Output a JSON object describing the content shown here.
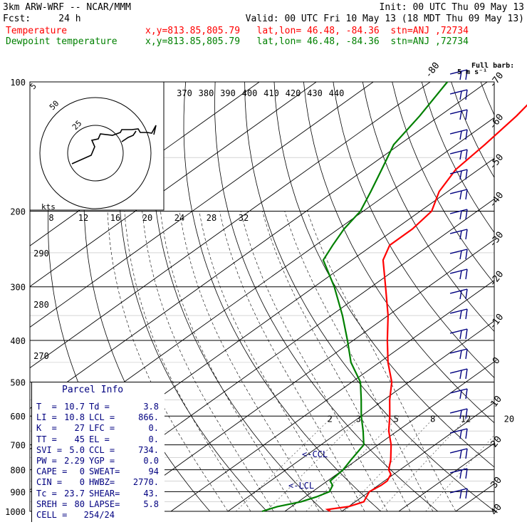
{
  "header": {
    "line1_left": "3km ARW-WRF -- NCAR/MMM",
    "line1_right": "Init: 00 UTC Thu 09 May 13",
    "line2_left": "Fcst:     24 h",
    "line2_right": "Valid: 00 UTC Fri 10 May 13 (18 MDT Thu 09 May 13)",
    "temp_label": "Temperature",
    "temp_loc": "x,y=813.85,805.79   lat,lon= 46.48, -84.36  stn=ANJ ,72734",
    "dew_label": "Dewpoint temperature",
    "dew_loc": "x,y=813.85,805.79   lat,lon= 46.48, -84.36  stn=ANJ ,72734",
    "colors": {
      "temperature": "#ff0000",
      "dewpoint": "#008000",
      "parcel": "#000080"
    }
  },
  "barb_legend": {
    "line1": "Full barb:",
    "line2": "5 m s⁻¹"
  },
  "hodograph": {
    "units": "kts",
    "ring_labels": [
      "25",
      "50",
      "5"
    ]
  },
  "parcel_info": {
    "title": "Parcel Info",
    "rows": [
      {
        "k1": "T  =",
        "v1": "10.7",
        "k2": "Td =",
        "v2": "3.8"
      },
      {
        "k1": "LI =",
        "v1": "10.8",
        "k2": "LCL =",
        "v2": "866."
      },
      {
        "k1": "K  =",
        "v1": "27",
        "k2": "LFC =",
        "v2": "0."
      },
      {
        "k1": "TT =",
        "v1": "45",
        "k2": "EL =",
        "v2": "0."
      },
      {
        "k1": "SVI =",
        "v1": "5.0",
        "k2": "CCL =",
        "v2": "734."
      },
      {
        "k1": "PW =",
        "v1": "2.29",
        "k2": "YGP =",
        "v2": "0.0"
      },
      {
        "k1": "CAPE =",
        "v1": "0",
        "k2": "SWEAT=",
        "v2": "94"
      },
      {
        "k1": "CIN =",
        "v1": "0",
        "k2": "HWBZ=",
        "v2": "2770."
      },
      {
        "k1": "Tc =",
        "v1": "23.7",
        "k2": "SHEAR=",
        "v2": "43."
      },
      {
        "k1": "SREH =",
        "v1": "80",
        "k2": "LAPSE=",
        "v2": "5.8"
      },
      {
        "k1": "CELL =",
        "v1": "254/24",
        "k2": "",
        "v2": ""
      }
    ]
  },
  "annotations": {
    "ccl": "<-CCL",
    "lcl": "<-LCL"
  },
  "chart_data": {
    "type": "line",
    "title": "",
    "pressure_levels": [
      100,
      200,
      300,
      400,
      500,
      600,
      700,
      800,
      900,
      1000
    ],
    "temp_ticks": [
      -80,
      -70,
      -60,
      -50,
      -40,
      -30,
      -20,
      -10,
      0,
      10,
      20,
      30,
      40
    ],
    "theta_labels": [
      {
        "value": "370"
      },
      {
        "value": "380"
      },
      {
        "value": "390"
      },
      {
        "value": "400"
      },
      {
        "value": "410"
      },
      {
        "value": "420"
      },
      {
        "value": "430"
      },
      {
        "value": "440"
      }
    ],
    "mixing_ratio_labels": [
      "2",
      "3",
      "5",
      "8",
      "12",
      "20"
    ],
    "theta_e_labels": [
      "290",
      "280",
      "270"
    ],
    "hodo_speed_labels": [
      "8",
      "12",
      "16",
      "20",
      "24",
      "28",
      "32"
    ],
    "series": [
      {
        "name": "Temperature",
        "color": "#ff0000",
        "points": [
          [
            1000,
            8.0
          ],
          [
            990,
            7.0
          ],
          [
            975,
            10.0
          ],
          [
            950,
            11.5
          ],
          [
            900,
            10.0
          ],
          [
            870,
            10.5
          ],
          [
            850,
            10.5
          ],
          [
            820,
            9.5
          ],
          [
            800,
            8.0
          ],
          [
            760,
            6.0
          ],
          [
            700,
            2.3
          ],
          [
            650,
            -1.5
          ],
          [
            600,
            -5.0
          ],
          [
            550,
            -9.0
          ],
          [
            500,
            -13.0
          ],
          [
            450,
            -18.5
          ],
          [
            400,
            -24.0
          ],
          [
            350,
            -30.0
          ],
          [
            300,
            -37.5
          ],
          [
            260,
            -44.5
          ],
          [
            240,
            -47.0
          ],
          [
            220,
            -47.0
          ],
          [
            200,
            -48.0
          ],
          [
            180,
            -51.5
          ],
          [
            160,
            -54.0
          ],
          [
            140,
            -55.0
          ],
          [
            120,
            -56.5
          ],
          [
            100,
            -59.0
          ]
        ]
      },
      {
        "name": "Dewpoint temperature",
        "color": "#008000",
        "points": [
          [
            1000,
            -4.0
          ],
          [
            975,
            -2.5
          ],
          [
            950,
            0.5
          ],
          [
            925,
            2.0
          ],
          [
            900,
            3.0
          ],
          [
            870,
            2.0
          ],
          [
            850,
            0.5
          ],
          [
            800,
            0.0
          ],
          [
            760,
            -1.0
          ],
          [
            700,
            -2.5
          ],
          [
            650,
            -6.0
          ],
          [
            600,
            -10.0
          ],
          [
            550,
            -14.0
          ],
          [
            500,
            -18.5
          ],
          [
            450,
            -25.0
          ],
          [
            400,
            -31.0
          ],
          [
            350,
            -38.0
          ],
          [
            300,
            -46.5
          ],
          [
            260,
            -55.0
          ],
          [
            240,
            -57.0
          ],
          [
            220,
            -59.0
          ],
          [
            200,
            -60.5
          ],
          [
            180,
            -63.5
          ],
          [
            160,
            -67.0
          ],
          [
            140,
            -71.0
          ],
          [
            120,
            -73.5
          ],
          [
            100,
            -77.0
          ]
        ]
      }
    ],
    "wind_barbs": {
      "units": "m s-1",
      "levels": 22
    }
  }
}
